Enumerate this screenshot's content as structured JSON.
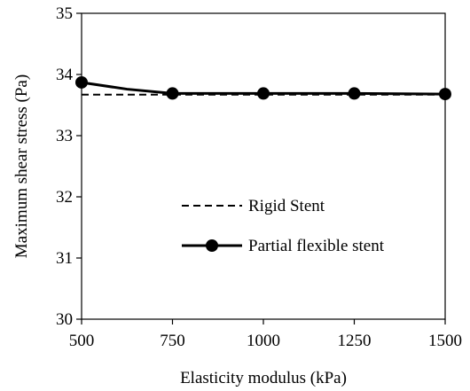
{
  "chart_data": {
    "type": "line",
    "title": "",
    "xlabel": "Elasticity modulus (kPa)",
    "ylabel": "Maximum shear stress (Pa)",
    "xlim": [
      500,
      1500
    ],
    "ylim": [
      30,
      35
    ],
    "xticks": [
      500,
      750,
      1000,
      1250,
      1500
    ],
    "yticks": [
      30,
      31,
      32,
      33,
      34,
      35
    ],
    "grid": false,
    "legend_position": "center-right",
    "series": [
      {
        "name": "Rigid Stent",
        "style": "dashed",
        "marker": "none",
        "color": "#000000",
        "x": [
          500,
          1500
        ],
        "y": [
          33.67,
          33.67
        ]
      },
      {
        "name": "Partial flexible stent",
        "style": "solid",
        "marker": "circle",
        "color": "#000000",
        "x": [
          500,
          625,
          750,
          1000,
          1250,
          1500
        ],
        "y": [
          33.87,
          33.76,
          33.69,
          33.69,
          33.69,
          33.68
        ],
        "marker_x": [
          500,
          750,
          1000,
          1250,
          1500
        ]
      }
    ]
  }
}
